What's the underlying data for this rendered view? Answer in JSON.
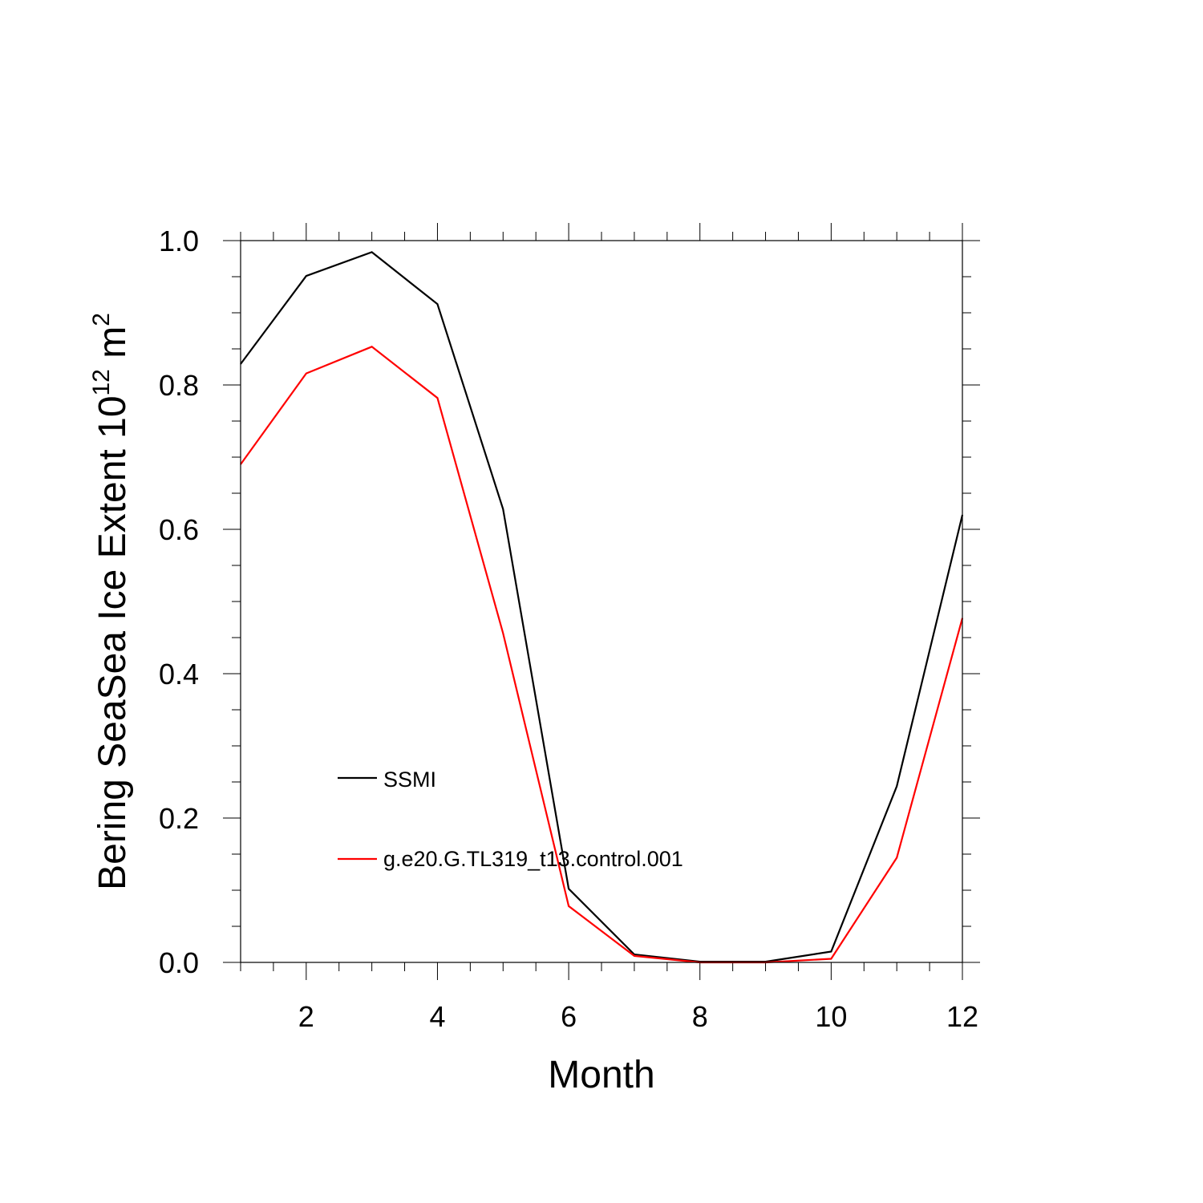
{
  "chart_data": {
    "type": "line",
    "title": "",
    "xlabel": "Month",
    "ylabel": {
      "base": "Bering SeaSea Ice Extent 10",
      "exponent": "12",
      "unit_base": " m",
      "unit_exponent": "2"
    },
    "x": [
      1,
      2,
      3,
      4,
      5,
      6,
      7,
      8,
      9,
      10,
      11,
      12
    ],
    "xlim": [
      1,
      12
    ],
    "ylim": [
      0.0,
      1.0
    ],
    "x_ticks": [
      2,
      4,
      6,
      8,
      10,
      12
    ],
    "x_tick_labels": [
      "2",
      "4",
      "6",
      "8",
      "10",
      "12"
    ],
    "y_ticks": [
      0.0,
      0.2,
      0.4,
      0.6,
      0.8,
      1.0
    ],
    "y_tick_labels": [
      "0.0",
      "0.2",
      "0.4",
      "0.6",
      "0.8",
      "1.0"
    ],
    "grid": false,
    "legend_position": "lower-left",
    "series": [
      {
        "name": "SSMI",
        "color": "#000000",
        "values": [
          0.829,
          0.951,
          0.984,
          0.912,
          0.628,
          0.102,
          0.011,
          0.001,
          0.001,
          0.015,
          0.244,
          0.62
        ]
      },
      {
        "name": "g.e20.G.TL319_t13.control.001",
        "color": "#ff0000",
        "values": [
          0.69,
          0.816,
          0.853,
          0.782,
          0.456,
          0.078,
          0.009,
          0.0,
          0.0,
          0.005,
          0.145,
          0.477
        ]
      }
    ]
  }
}
